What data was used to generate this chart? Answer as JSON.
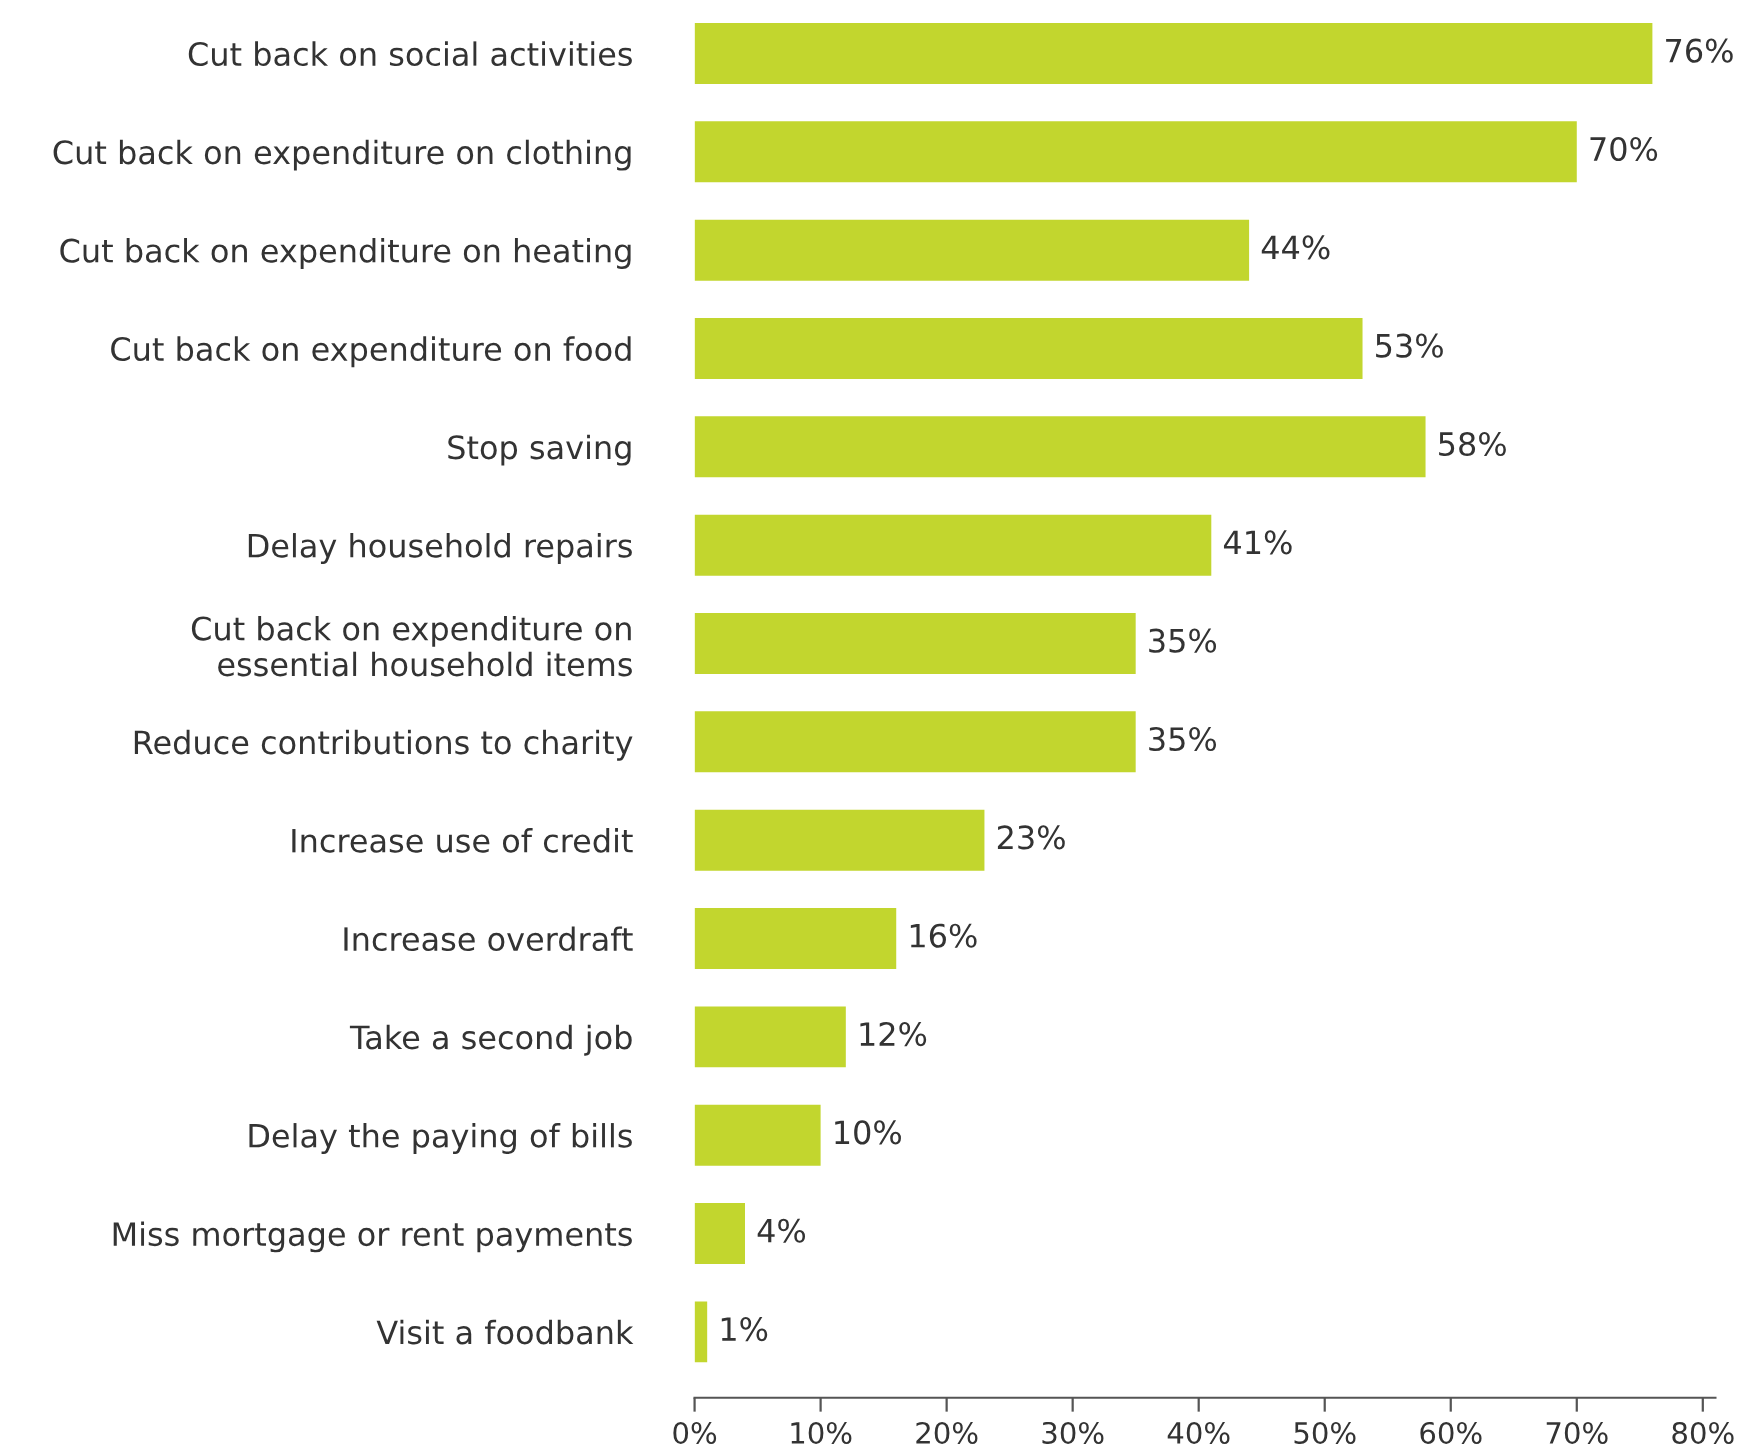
{
  "chart_data": {
    "type": "bar",
    "orientation": "horizontal",
    "categories": [
      "Cut back on social activities",
      "Cut back on expenditure on clothing",
      "Cut back on expenditure on heating",
      "Cut back on expenditure on food",
      "Stop saving",
      "Delay household repairs",
      "Cut back on expenditure on\nessential household items",
      "Reduce contributions to charity",
      "Increase use of credit",
      "Increase overdraft",
      "Take a second job",
      "Delay the paying of bills",
      "Miss mortgage or rent payments",
      "Visit a foodbank"
    ],
    "values": [
      76,
      70,
      44,
      53,
      58,
      41,
      35,
      35,
      23,
      16,
      12,
      10,
      4,
      1
    ],
    "value_labels": [
      "76%",
      "70%",
      "44%",
      "53%",
      "58%",
      "41%",
      "35%",
      "35%",
      "23%",
      "16%",
      "12%",
      "10%",
      "4%",
      "1%"
    ],
    "color": "#c2d62e",
    "xlim": [
      0,
      81
    ],
    "xticks": [
      {
        "value": 0,
        "label": "0%"
      },
      {
        "value": 10,
        "label": "10%"
      },
      {
        "value": 20,
        "label": "20%"
      },
      {
        "value": 30,
        "label": "30%"
      },
      {
        "value": 40,
        "label": "40%"
      },
      {
        "value": 50,
        "label": "50%"
      },
      {
        "value": 60,
        "label": "60%"
      },
      {
        "value": 70,
        "label": "70%"
      },
      {
        "value": 80,
        "label": "80%"
      }
    ],
    "grid": false,
    "legend": false
  }
}
